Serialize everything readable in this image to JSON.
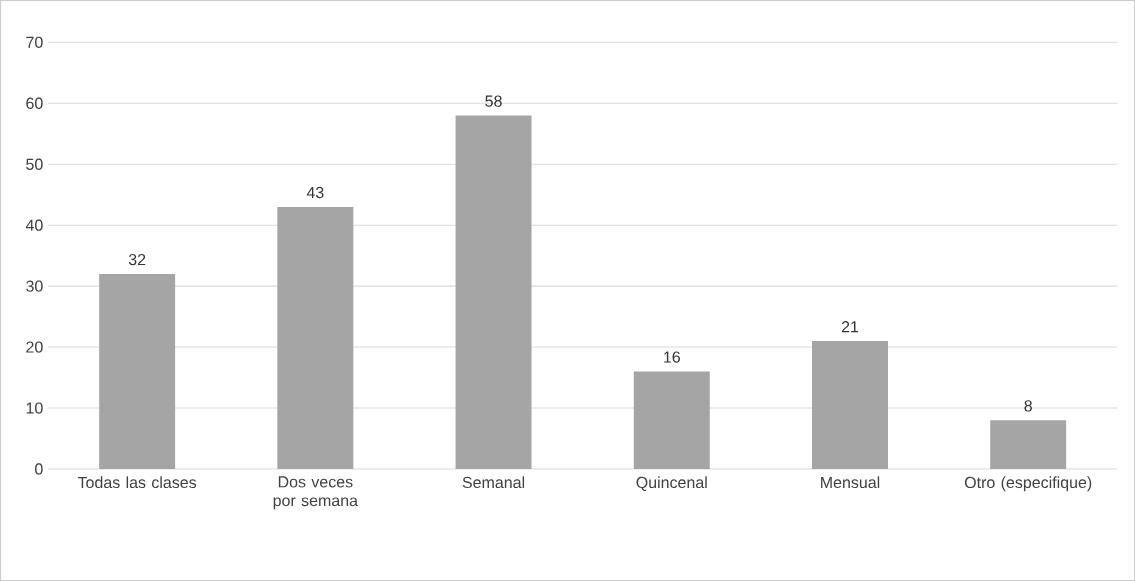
{
  "chart_data": {
    "type": "bar",
    "categories": [
      "Todas las clases",
      "Dos veces por semana",
      "Semanal",
      "Quincenal",
      "Mensual",
      "Otro (especifique)"
    ],
    "values": [
      32,
      43,
      58,
      16,
      21,
      8
    ],
    "color": "#a5a5a5",
    "ylim": [
      0,
      70
    ],
    "yticks": [
      0,
      10,
      20,
      30,
      40,
      50,
      60,
      70
    ],
    "grid": "y",
    "data_labels": true
  }
}
